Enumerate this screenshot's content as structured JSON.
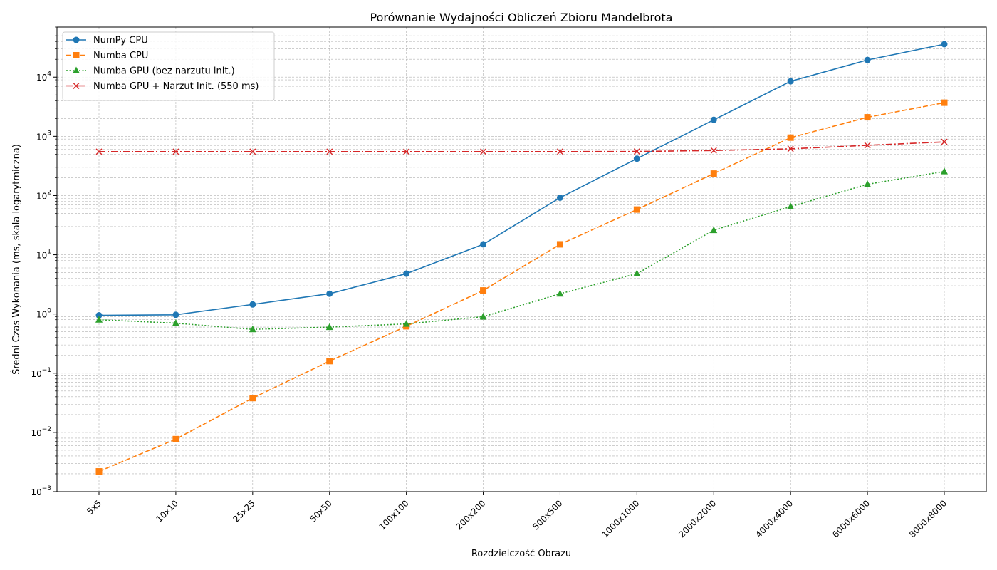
{
  "chart_data": {
    "type": "line",
    "title": "Porównanie Wydajności Obliczeń Zbioru Mandelbrota",
    "xlabel": "Rozdzielczość Obrazu",
    "ylabel": "Średni Czas Wykonania (ms, skala logarytmiczna)",
    "yscale": "log",
    "ylim": [
      0.001,
      70000
    ],
    "y_ticks": [
      {
        "value": 0.001,
        "base": "10",
        "exp": "−3"
      },
      {
        "value": 0.01,
        "base": "10",
        "exp": "−2"
      },
      {
        "value": 0.1,
        "base": "10",
        "exp": "−1"
      },
      {
        "value": 1,
        "base": "10",
        "exp": "0"
      },
      {
        "value": 10,
        "base": "10",
        "exp": "1"
      },
      {
        "value": 100,
        "base": "10",
        "exp": "2"
      },
      {
        "value": 1000,
        "base": "10",
        "exp": "3"
      },
      {
        "value": 10000,
        "base": "10",
        "exp": "4"
      }
    ],
    "grid": true,
    "legend_position": "top-left",
    "categories": [
      "5x5",
      "10x10",
      "25x25",
      "50x50",
      "100x100",
      "200x200",
      "500x500",
      "1000x1000",
      "2000x2000",
      "4000x4000",
      "6000x6000",
      "8000x8000"
    ],
    "series": [
      {
        "name": "NumPy CPU",
        "color": "#1f77b4",
        "dash": "solid",
        "marker": "circle",
        "values": [
          0.95,
          0.97,
          1.45,
          2.2,
          4.8,
          15,
          92,
          420,
          1900,
          8500,
          19500,
          36000
        ]
      },
      {
        "name": "Numba CPU",
        "color": "#ff7f0e",
        "dash": "dashed",
        "marker": "square",
        "values": [
          0.0022,
          0.0077,
          0.038,
          0.16,
          0.62,
          2.5,
          15,
          58,
          235,
          950,
          2100,
          3700
        ]
      },
      {
        "name": "Numba GPU (bez narzutu init.)",
        "color": "#2ca02c",
        "dash": "dotted",
        "marker": "triangle",
        "values": [
          0.8,
          0.7,
          0.55,
          0.6,
          0.68,
          0.9,
          2.2,
          4.8,
          26,
          65,
          155,
          255
        ]
      },
      {
        "name": "Numba GPU + Narzut Init. (550 ms)",
        "color": "#d62728",
        "dash": "dashdot",
        "marker": "x",
        "values": [
          551,
          551,
          551,
          551,
          551,
          551,
          552,
          555,
          576,
          615,
          705,
          805
        ]
      }
    ]
  }
}
